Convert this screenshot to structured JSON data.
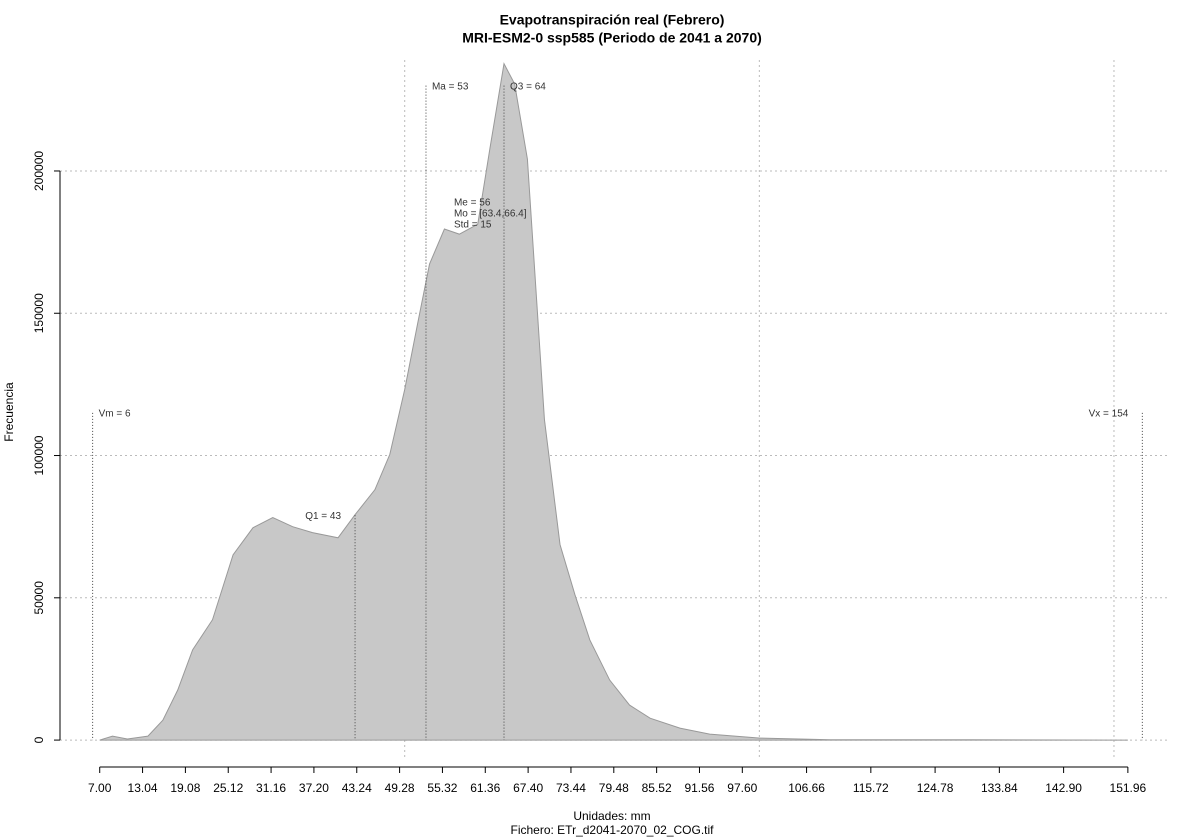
{
  "chart_data": {
    "type": "area",
    "title": "Evapotranspiración real (Febrero)",
    "subtitle": "MRI-ESM2-0 ssp585 (Periodo de 2041 a 2070)",
    "xlabel": "Unidades: mm",
    "caption": "Fichero: ETr_d2041-2070_02_COG.tif",
    "ylabel": "Frecuencia",
    "color": "#c8c8c8",
    "x": [
      7.0,
      8.8,
      10.9,
      13.8,
      15.9,
      18.0,
      20.1,
      22.9,
      25.8,
      28.6,
      31.4,
      34.2,
      37.0,
      40.6,
      43.0,
      45.8,
      47.9,
      50.0,
      51.8,
      53.5,
      55.6,
      57.7,
      60.3,
      62.0,
      64.0,
      65.5,
      67.3,
      69.7,
      71.9,
      74.0,
      76.1,
      78.9,
      81.7,
      84.6,
      88.8,
      93.0,
      100.1,
      110.0,
      130.0,
      151.96
    ],
    "values": [
      0,
      1400,
      400,
      1400,
      7000,
      17600,
      31700,
      42300,
      65100,
      74600,
      78200,
      75000,
      72900,
      71100,
      79200,
      88000,
      100400,
      123200,
      146100,
      167300,
      179600,
      177800,
      181300,
      207700,
      237700,
      230600,
      204200,
      112700,
      68700,
      51100,
      35200,
      21100,
      12300,
      7700,
      4200,
      2100,
      700,
      100,
      100,
      0
    ],
    "xlim": [
      1.4,
      157.9
    ],
    "ylim": [
      -7000,
      239000
    ],
    "xticks": [
      {
        "value": 7,
        "label": "7.00"
      },
      13.04,
      19.08,
      25.12,
      31.16,
      {
        "value": 37.2,
        "label": "37.20"
      },
      43.24,
      49.28,
      55.32,
      61.36,
      {
        "value": 67.4,
        "label": "67.40"
      },
      73.44,
      79.48,
      85.52,
      91.56,
      {
        "value": 97.6,
        "label": "97.60"
      },
      106.66,
      115.72,
      124.78,
      133.84,
      {
        "value": 142.9,
        "label": "142.90"
      },
      151.96
    ],
    "yticks": [
      0,
      50000,
      100000,
      150000,
      200000
    ],
    "xgrid": [
      50,
      100,
      150
    ],
    "grid": true,
    "markers": [
      {
        "label": "Vm = 6",
        "x": 6,
        "top": 115000,
        "side": "right"
      },
      {
        "label": "Q1 = 43",
        "x": 43,
        "top": 79000,
        "side": "left"
      },
      {
        "label": "Ma = 53",
        "x": 53,
        "top": 230000,
        "side": "right"
      },
      {
        "label": "Q3 = 64",
        "x": 64,
        "top": 230000,
        "side": "right"
      },
      {
        "label": "Vx = 154",
        "x": 154,
        "top": 115000,
        "side": "left"
      }
    ],
    "stats": [
      "Me = 56",
      "Mo = [63.4,66.4]",
      "Std = 15"
    ]
  }
}
